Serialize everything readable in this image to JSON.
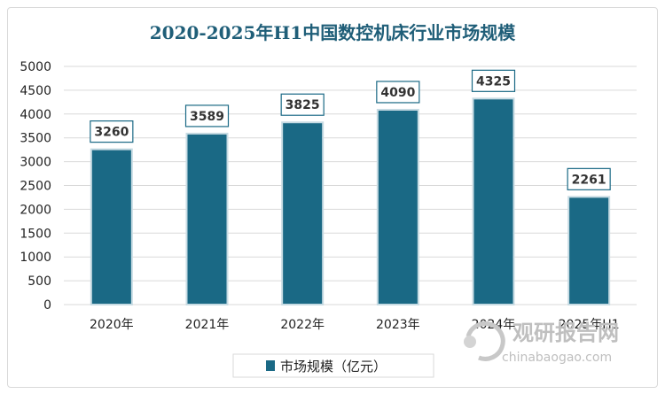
{
  "chart_data": {
    "type": "bar",
    "title": "2020-2025年H1中国数控机床行业市场规模",
    "categories": [
      "2020年",
      "2021年",
      "2022年",
      "2023年",
      "2024年",
      "2025年H1"
    ],
    "series": [
      {
        "name": "市场规模（亿元）",
        "values": [
          3260,
          3589,
          3825,
          4090,
          4325,
          2261
        ]
      }
    ],
    "ylim": [
      0,
      5000
    ],
    "yticks": [
      0,
      500,
      1000,
      1500,
      2000,
      2500,
      3000,
      3500,
      4000,
      4500,
      5000
    ],
    "xlabel": "",
    "ylabel": "",
    "grid": true,
    "legend_position": "bottom",
    "colors": {
      "bar": "#1a6985",
      "bar_edge": "#c7dbe3",
      "label_border": "#1a6985",
      "grid": "#d9d9d9",
      "title": "#1f5e78"
    }
  },
  "watermark": {
    "brand": "观研报告网",
    "domain": "chinabaogao.com"
  }
}
